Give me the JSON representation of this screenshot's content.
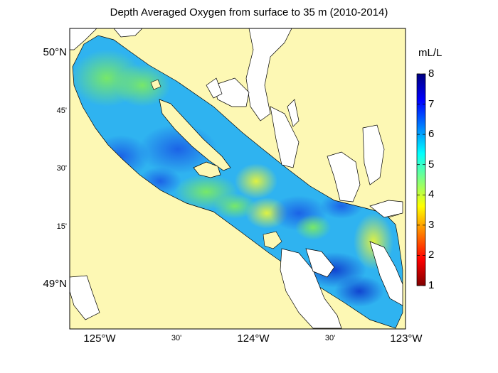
{
  "title": "Depth Averaged Oxygen from surface to 35 m (2010-2014)",
  "colorbar": {
    "unit": "mL/L",
    "min": 1,
    "max": 8,
    "ticks": [
      "1",
      "2",
      "3",
      "4",
      "5",
      "6",
      "7",
      "8"
    ],
    "colors": [
      "#800000",
      "#ff0000",
      "#ff8000",
      "#ffff00",
      "#80ff80",
      "#00ffff",
      "#0080ff",
      "#0000ff",
      "#000080"
    ]
  },
  "lat_labels": [
    {
      "text": "50°N",
      "kind": "major"
    },
    {
      "text": "45'",
      "kind": "minor"
    },
    {
      "text": "30'",
      "kind": "minor"
    },
    {
      "text": "15'",
      "kind": "minor"
    },
    {
      "text": "49°N",
      "kind": "major"
    }
  ],
  "lon_labels": [
    {
      "text": "125°W",
      "kind": "major"
    },
    {
      "text": "30'",
      "kind": "minor"
    },
    {
      "text": "124°W",
      "kind": "major"
    },
    {
      "text": "30'",
      "kind": "minor"
    },
    {
      "text": "123°W",
      "kind": "major"
    }
  ],
  "colors": {
    "land": "#fdf8b4",
    "inland_water": "#ffffff",
    "coast_line": "#000000"
  }
}
